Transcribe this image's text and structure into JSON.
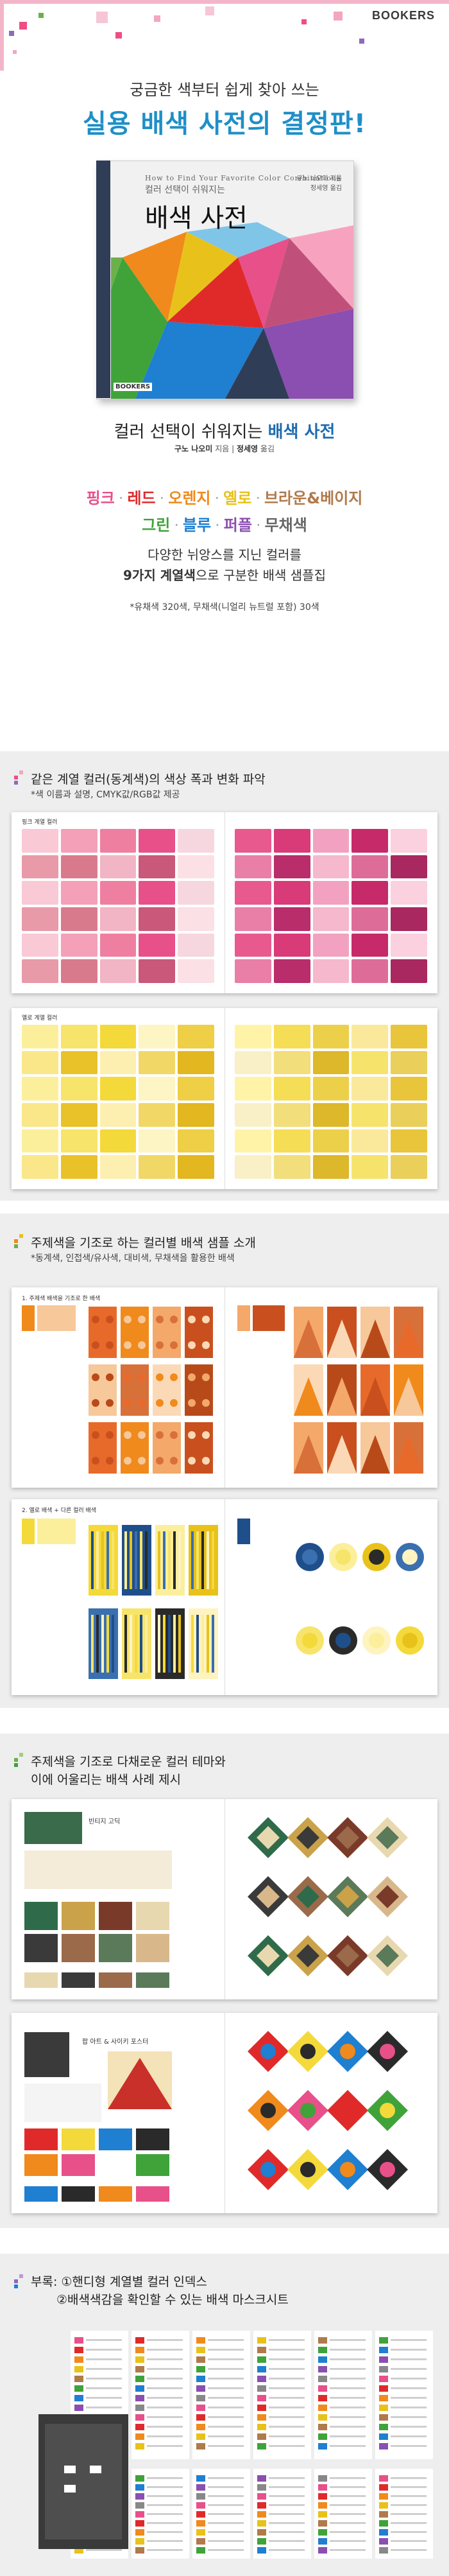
{
  "brand": "BOOKERS",
  "tagline": "궁금한 색부터 쉽게 찾아 쓰는",
  "headline": "실용 배색 사전의 결정판!",
  "book": {
    "latin": "How to Find Your Favorite Color Combinations",
    "mini": "컬러 선택이 쉬워지는",
    "title": "배색 사전",
    "author_line1": "구노 나오미 지음",
    "author_line2": "정세영 옮김",
    "publisher": "BOOKERS"
  },
  "subtitle": {
    "prefix": "컬러 선택이 쉬워지는",
    "title": "배색 사전"
  },
  "credits": {
    "author_name": "구노 나오미",
    "author_role": "지음",
    "translator_name": "정세영",
    "translator_role": "옮김"
  },
  "categories": [
    {
      "label": "핑크",
      "color": "#e8508a"
    },
    {
      "label": "레드",
      "color": "#e02a2a"
    },
    {
      "label": "오렌지",
      "color": "#f08a1c"
    },
    {
      "label": "옐로",
      "color": "#e8c21a"
    },
    {
      "label": "브라운&베이지",
      "color": "#b07a4a"
    },
    {
      "label": "그린",
      "color": "#3fa33a"
    },
    {
      "label": "블루",
      "color": "#1f7fd0"
    },
    {
      "label": "퍼플",
      "color": "#8a4fb0"
    },
    {
      "label": "무채색",
      "color": "#666666"
    }
  ],
  "desc": {
    "line1": "다양한 뉘앙스를 지닌 컬러를",
    "line2_bold": "9가지 계열색",
    "line2_rest": "으로 구분한 배색 샘플집"
  },
  "note": "*유채색 320색, 무채색(니얼리 뉴트럴 포함) 30색",
  "sections": [
    {
      "title": "같은 계열 컬러(동계색)의 색상 폭과 변화 파악",
      "sub": "*색 이름과 설명, CMYK값/RGB값 제공"
    },
    {
      "title": "주제색을 기조로 하는 컬러별 배색 샘플 소개",
      "sub": "*동계색, 인접색/유사색, 대비색, 무채색을 활용한 배색"
    },
    {
      "title": "주제색을 기조로 다채로운 컬러 테마와",
      "title2": "이에 어울리는 배색 사례 제시"
    },
    {
      "title": "부록: ①핸디형 계열별 컬러 인덱스",
      "title2": "②배색색감을 확인할 수 있는 배색 마스크시트"
    }
  ],
  "spread_labels": {
    "s1_left": "핑크 계열 컬러",
    "s2_left": "옐로 계열 컬러",
    "s3_left": "1. 주제색 배색을 기조로 한 배색",
    "s4_left": "2. 옐로 배색 + 다른 컬러 배색",
    "s5_title": "빈티지 고딕",
    "s6_title": "팝 아트 & 사이키 포스터"
  },
  "colors": {
    "accent_blue": "#1e8fc8",
    "pink_deco": "#ef4d86",
    "green_deco": "#6bb04a",
    "purple_deco": "#8e6ab8"
  }
}
